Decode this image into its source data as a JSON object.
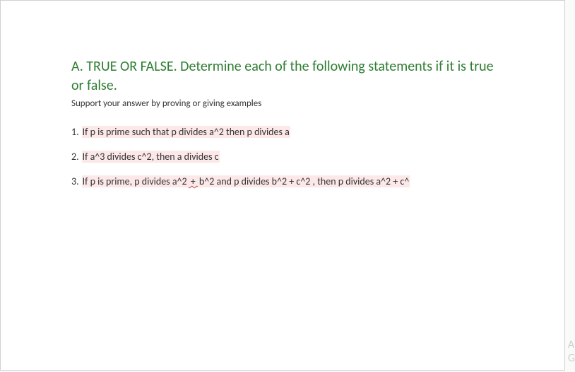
{
  "document": {
    "heading": "A. TRUE OR FALSE. Determine each of the following statements if it is true or false.",
    "subtext": "Support your answer by proving or giving examples",
    "heading_color": "#2e7d32",
    "heading_fontsize": 20,
    "subtext_color": "#333333",
    "subtext_fontsize": 13,
    "highlight_color": "#fce8e8",
    "page_background": "#ffffff",
    "body_background": "#fafafa",
    "border_color": "#d0d0d0"
  },
  "questions": [
    {
      "number": "1.",
      "text": " If p is prime such that p divides a^2 then p divides a"
    },
    {
      "number": "2.",
      "text": "If a^3 divides c^2, then a divides c"
    },
    {
      "number": "3.",
      "prefix": "If p is prime, p divides a^2",
      "wavy": "  + ",
      "suffix": "b^2 and p divides b^2 + c^2 , then p divides a^2 + c^"
    }
  ],
  "watermark": {
    "line1": "A",
    "line2": "G",
    "color": "#d0d0d0"
  }
}
